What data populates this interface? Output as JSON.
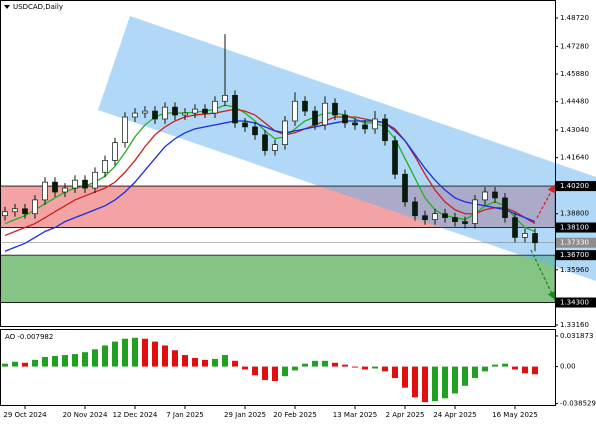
{
  "chart_data": [
    {
      "type": "candlestick",
      "title": "USDCAD,Daily",
      "categories": [
        null,
        null,
        "29 Oct 2024",
        null,
        null,
        null,
        null,
        null,
        "20 Nov 2024",
        null,
        null,
        null,
        null,
        "12 Dec 2024",
        null,
        null,
        null,
        null,
        "7 Jan 2025",
        null,
        null,
        null,
        null,
        null,
        "29 Jan 2025",
        null,
        null,
        null,
        null,
        "20 Feb 2025",
        null,
        null,
        null,
        null,
        null,
        "13 Mar 2025",
        null,
        null,
        null,
        null,
        "2 Apr 2025",
        null,
        null,
        null,
        null,
        "24 Apr 2025",
        null,
        null,
        null,
        null,
        null,
        "16 May 2025",
        null,
        null
      ],
      "open": [
        1.387,
        1.389,
        1.3905,
        1.388,
        1.395,
        1.404,
        1.399,
        1.401,
        1.405,
        1.401,
        1.409,
        1.415,
        1.424,
        1.437,
        1.439,
        1.44,
        1.436,
        1.442,
        1.438,
        1.439,
        1.441,
        1.439,
        1.445,
        1.448,
        1.434,
        1.432,
        1.428,
        1.42,
        1.423,
        1.435,
        1.445,
        1.44,
        1.433,
        1.444,
        1.438,
        1.434,
        1.433,
        1.431,
        1.436,
        1.425,
        1.408,
        1.394,
        1.387,
        1.385,
        1.388,
        1.386,
        1.384,
        1.383,
        1.395,
        1.399,
        1.396,
        1.386,
        1.376,
        1.378
      ],
      "high": [
        1.3915,
        1.393,
        1.393,
        1.3975,
        1.4065,
        1.4065,
        1.4035,
        1.4075,
        1.4075,
        1.4115,
        1.4175,
        1.4265,
        1.4395,
        1.4415,
        1.4425,
        1.4425,
        1.4445,
        1.4445,
        1.4415,
        1.4435,
        1.4435,
        1.4475,
        1.479,
        1.4505,
        1.4365,
        1.4345,
        1.4305,
        1.4255,
        1.4375,
        1.4495,
        1.4475,
        1.4425,
        1.4475,
        1.4465,
        1.4405,
        1.4365,
        1.4355,
        1.44,
        1.4385,
        1.4275,
        1.4105,
        1.3965,
        1.3895,
        1.3905,
        1.3905,
        1.3885,
        1.3865,
        1.3975,
        1.4015,
        1.4015,
        1.3985,
        1.3885,
        1.3805,
        1.3805
      ],
      "low": [
        1.3845,
        1.3865,
        1.3855,
        1.3855,
        1.3925,
        1.3965,
        1.3965,
        1.3985,
        1.3985,
        1.3985,
        1.4065,
        1.4125,
        1.4215,
        1.4345,
        1.4365,
        1.4335,
        1.4335,
        1.4355,
        1.4355,
        1.4365,
        1.4365,
        1.4365,
        1.4425,
        1.4315,
        1.4295,
        1.4255,
        1.4175,
        1.4175,
        1.4205,
        1.4325,
        1.4375,
        1.4305,
        1.4305,
        1.4355,
        1.4315,
        1.4305,
        1.4285,
        1.4285,
        1.4225,
        1.4055,
        1.3915,
        1.3845,
        1.3825,
        1.3825,
        1.3835,
        1.3815,
        1.3805,
        1.3805,
        1.3925,
        1.3935,
        1.3835,
        1.3735,
        1.3735,
        1.369
      ],
      "close": [
        1.389,
        1.3905,
        1.388,
        1.395,
        1.404,
        1.399,
        1.401,
        1.405,
        1.401,
        1.409,
        1.415,
        1.424,
        1.437,
        1.439,
        1.44,
        1.436,
        1.442,
        1.438,
        1.439,
        1.441,
        1.439,
        1.445,
        1.448,
        1.434,
        1.432,
        1.428,
        1.42,
        1.423,
        1.435,
        1.445,
        1.44,
        1.433,
        1.444,
        1.438,
        1.434,
        1.433,
        1.431,
        1.436,
        1.425,
        1.408,
        1.394,
        1.387,
        1.385,
        1.388,
        1.386,
        1.384,
        1.383,
        1.395,
        1.399,
        1.396,
        1.386,
        1.376,
        1.378,
        1.3733
      ],
      "candle_color": "#0a1a0a",
      "series": [
        {
          "color": "#22b022",
          "values": [
            1.383,
            1.385,
            1.387,
            1.39,
            1.393,
            1.396,
            1.399,
            1.401,
            1.402,
            1.404,
            1.407,
            1.412,
            1.419,
            1.427,
            1.433,
            1.437,
            1.439,
            1.439,
            1.439,
            1.4395,
            1.44,
            1.441,
            1.443,
            1.442,
            1.439,
            1.435,
            1.43,
            1.426,
            1.427,
            1.431,
            1.435,
            1.437,
            1.439,
            1.439,
            1.438,
            1.436,
            1.434,
            1.434,
            1.432,
            1.426,
            1.416,
            1.406,
            1.396,
            1.39,
            1.387,
            1.386,
            1.385,
            1.388,
            1.392,
            1.394,
            1.392,
            1.386,
            1.381,
            1.379
          ]
        },
        {
          "color": "#cc2020",
          "values": [
            1.377,
            1.379,
            1.381,
            1.383,
            1.386,
            1.389,
            1.392,
            1.395,
            1.397,
            1.399,
            1.401,
            1.404,
            1.409,
            1.415,
            1.422,
            1.428,
            1.432,
            1.435,
            1.437,
            1.438,
            1.4385,
            1.439,
            1.44,
            1.441,
            1.44,
            1.438,
            1.434,
            1.43,
            1.428,
            1.429,
            1.431,
            1.433,
            1.435,
            1.437,
            1.437,
            1.437,
            1.436,
            1.435,
            1.434,
            1.431,
            1.425,
            1.417,
            1.408,
            1.4,
            1.394,
            1.39,
            1.388,
            1.388,
            1.39,
            1.391,
            1.391,
            1.389,
            1.386,
            1.383
          ]
        },
        {
          "color": "#1a2ee0",
          "values": [
            1.369,
            1.371,
            1.373,
            1.376,
            1.379,
            1.381,
            1.384,
            1.386,
            1.388,
            1.39,
            1.392,
            1.395,
            1.399,
            1.404,
            1.41,
            1.416,
            1.422,
            1.426,
            1.429,
            1.431,
            1.432,
            1.433,
            1.434,
            1.435,
            1.435,
            1.434,
            1.432,
            1.43,
            1.429,
            1.43,
            1.431,
            1.432,
            1.433,
            1.434,
            1.435,
            1.435,
            1.435,
            1.435,
            1.434,
            1.43,
            1.425,
            1.418,
            1.411,
            1.405,
            1.4,
            1.396,
            1.394,
            1.393,
            1.392,
            1.391,
            1.39,
            1.388,
            1.386,
            1.384
          ]
        }
      ],
      "ylim": [
        1.3311,
        1.4963
      ],
      "yticks": [
        {
          "value": 1.4872,
          "label": "1.48720"
        },
        {
          "value": 1.4728,
          "label": "1.47280"
        },
        {
          "value": 1.4588,
          "label": "1.45880"
        },
        {
          "value": 1.4448,
          "label": "1.44480"
        },
        {
          "value": 1.4304,
          "label": "1.43040"
        },
        {
          "value": 1.4164,
          "label": "1.41640"
        },
        {
          "value": 1.388,
          "label": "1.38800"
        },
        {
          "value": 1.3596,
          "label": "1.35960"
        },
        {
          "value": 1.3316,
          "label": "1.33160"
        }
      ],
      "marked_levels": [
        {
          "value": 1.402,
          "label": "1.40200",
          "color": "#000000"
        },
        {
          "value": 1.381,
          "label": "1.38100",
          "color": "#000000"
        },
        {
          "value": 1.3733,
          "label": "1.37330",
          "color": "#8c8c8c"
        },
        {
          "value": 1.367,
          "label": "1.36700",
          "color": "#000000"
        },
        {
          "value": 1.343,
          "label": "1.34300",
          "color": "#000000"
        }
      ],
      "zones": [
        {
          "from": 1.402,
          "to": 1.381,
          "color": "#f3a3a3"
        },
        {
          "from": 1.367,
          "to": 1.343,
          "color": "#86c486"
        }
      ]
    },
    {
      "type": "bar",
      "title": "AO -0.007982",
      "values": [
        0.003,
        0.005,
        0.004,
        0.007,
        0.01,
        0.011,
        0.012,
        0.013,
        0.015,
        0.018,
        0.022,
        0.026,
        0.029,
        0.03,
        0.029,
        0.026,
        0.022,
        0.017,
        0.012,
        0.009,
        0.007,
        0.008,
        0.012,
        0.006,
        -0.003,
        -0.009,
        -0.014,
        -0.015,
        -0.01,
        -0.004,
        0.003,
        0.006,
        0.006,
        0.004,
        0.002,
        -0.001,
        -0.003,
        -0.002,
        -0.005,
        -0.012,
        -0.022,
        -0.032,
        -0.037,
        -0.036,
        -0.033,
        -0.028,
        -0.02,
        -0.012,
        -0.005,
        0.002,
        0.003,
        -0.003,
        -0.007,
        -0.007982
      ],
      "up_color": "#22a022",
      "down_color": "#e01010",
      "ylim": [
        -0.04,
        0.036
      ],
      "yticks": [
        0.031873,
        {
          "value": 0,
          "label": "0.00"
        },
        -0.038529
      ]
    }
  ]
}
